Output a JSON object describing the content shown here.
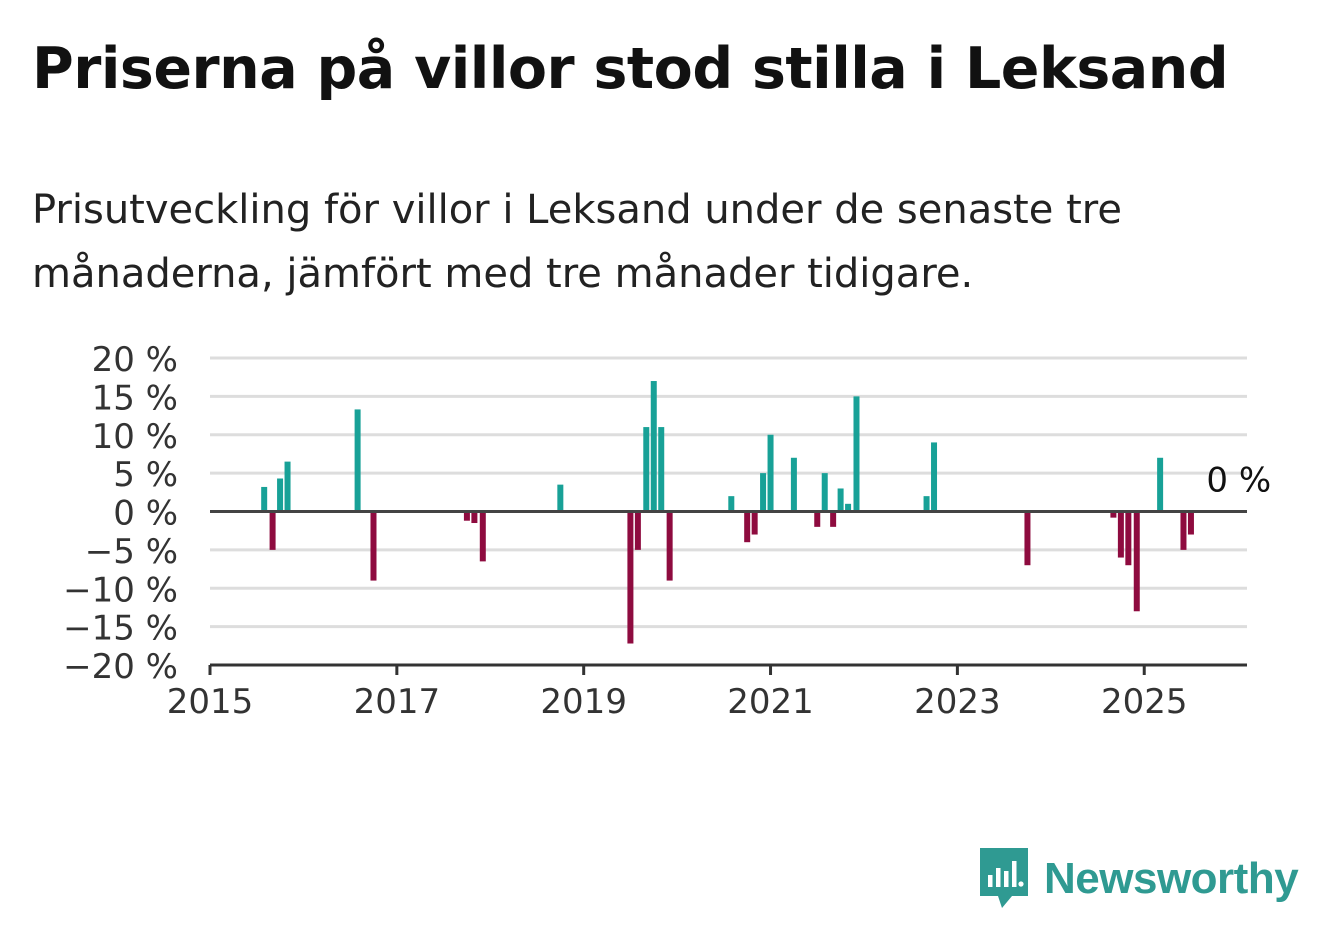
{
  "title": "Priserna på villor stod stilla i Leksand",
  "subtitle": "Prisutveckling för villor i Leksand under de senaste tre månaderna, jämfört med tre månader tidigare.",
  "brand": {
    "name": "Newsworthy",
    "color": "#2f9a92",
    "icon": "bar-chart-speech-bubble-icon"
  },
  "colors": {
    "positive": "#18a197",
    "negative": "#8e0b3f",
    "grid": "#dddddd",
    "axis": "#333333"
  },
  "chart_data": {
    "type": "bar",
    "x_unit": "year",
    "xlim": [
      2015,
      2026.1
    ],
    "ylim": [
      -20,
      20
    ],
    "y_ticks": [
      20,
      15,
      10,
      5,
      0,
      -5,
      -10,
      -15,
      -20
    ],
    "y_tick_labels": [
      "20 %",
      "15 %",
      "10 %",
      "5 %",
      "0 %",
      "−5 %",
      "−10 %",
      "−15 %",
      "−20 %"
    ],
    "x_ticks": [
      2015,
      2017,
      2019,
      2021,
      2023,
      2025
    ],
    "x_tick_labels": [
      "2015",
      "2017",
      "2019",
      "2021",
      "2023",
      "2025"
    ],
    "grid": true,
    "last_value_label": "0 %",
    "series": [
      {
        "points": [
          {
            "x": 2015.58,
            "y": 3.2
          },
          {
            "x": 2015.67,
            "y": -5.0
          },
          {
            "x": 2015.75,
            "y": 4.3
          },
          {
            "x": 2015.83,
            "y": 6.5
          },
          {
            "x": 2016.58,
            "y": 13.3
          },
          {
            "x": 2016.75,
            "y": -9.0
          },
          {
            "x": 2017.75,
            "y": -1.2
          },
          {
            "x": 2017.83,
            "y": -1.5
          },
          {
            "x": 2017.92,
            "y": -6.5
          },
          {
            "x": 2018.75,
            "y": 3.5
          },
          {
            "x": 2019.5,
            "y": -17.2
          },
          {
            "x": 2019.58,
            "y": -5.0
          },
          {
            "x": 2019.67,
            "y": 11.0
          },
          {
            "x": 2019.75,
            "y": 17.0
          },
          {
            "x": 2019.83,
            "y": 11.0
          },
          {
            "x": 2019.92,
            "y": -9.0
          },
          {
            "x": 2020.58,
            "y": 2.0
          },
          {
            "x": 2020.75,
            "y": -4.0
          },
          {
            "x": 2020.83,
            "y": -3.0
          },
          {
            "x": 2020.92,
            "y": 5.0
          },
          {
            "x": 2021.0,
            "y": 10.0
          },
          {
            "x": 2021.25,
            "y": 7.0
          },
          {
            "x": 2021.5,
            "y": -2.0
          },
          {
            "x": 2021.58,
            "y": 5.0
          },
          {
            "x": 2021.67,
            "y": -2.0
          },
          {
            "x": 2021.75,
            "y": 3.0
          },
          {
            "x": 2021.83,
            "y": 1.0
          },
          {
            "x": 2021.92,
            "y": 15.0
          },
          {
            "x": 2022.67,
            "y": 2.0
          },
          {
            "x": 2022.75,
            "y": 9.0
          },
          {
            "x": 2023.75,
            "y": -7.0
          },
          {
            "x": 2024.67,
            "y": -0.8
          },
          {
            "x": 2024.75,
            "y": -6.0
          },
          {
            "x": 2024.83,
            "y": -7.0
          },
          {
            "x": 2024.92,
            "y": -13.0
          },
          {
            "x": 2025.17,
            "y": 7.0
          },
          {
            "x": 2025.42,
            "y": -5.0
          },
          {
            "x": 2025.5,
            "y": -3.0
          },
          {
            "x": 2025.58,
            "y": 0.0
          }
        ]
      }
    ]
  }
}
